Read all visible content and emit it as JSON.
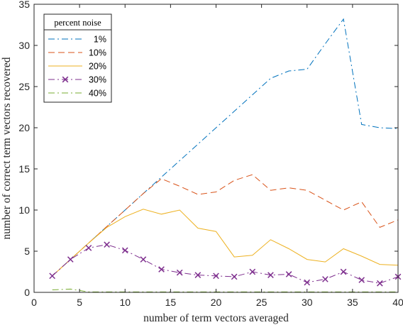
{
  "chart_data": {
    "type": "line",
    "xlabel": "number of term vectors averaged",
    "ylabel": "number of correct term vectors recovered",
    "xlim": [
      0,
      40
    ],
    "ylim": [
      0,
      35
    ],
    "xticks": [
      "0",
      "5",
      "10",
      "15",
      "20",
      "25",
      "30",
      "35",
      "40"
    ],
    "yticks": [
      "0",
      "5",
      "10",
      "15",
      "20",
      "25",
      "30",
      "35"
    ],
    "grid": false,
    "legend": {
      "title": "percent noise",
      "placement": "top-left"
    },
    "x": [
      2,
      4,
      6,
      8,
      10,
      12,
      14,
      16,
      18,
      20,
      22,
      24,
      26,
      28,
      30,
      32,
      34,
      36,
      38,
      40
    ],
    "series": [
      {
        "name": "1%",
        "color": "#0072BD",
        "dash": "dashdot",
        "marker": "none",
        "values": [
          2,
          4,
          6,
          8,
          10,
          12,
          14,
          16,
          18,
          20,
          22,
          24,
          26,
          26.9,
          27.1,
          30.2,
          33.2,
          20.4,
          20.0,
          19.9
        ]
      },
      {
        "name": "10%",
        "color": "#D95319",
        "dash": "dashed",
        "marker": "none",
        "values": [
          2,
          4,
          6,
          8,
          10,
          12,
          13.8,
          12.9,
          11.9,
          12.2,
          13.6,
          14.3,
          12.4,
          12.7,
          12.4,
          11.2,
          10.0,
          11.0,
          7.9,
          8.8
        ]
      },
      {
        "name": "20%",
        "color": "#EDB120",
        "dash": "solid",
        "marker": "none",
        "values": [
          2,
          4,
          6,
          7.9,
          9.2,
          10.1,
          9.5,
          10.0,
          7.8,
          7.4,
          4.3,
          4.5,
          6.4,
          5.3,
          4.0,
          3.7,
          5.3,
          4.4,
          3.4,
          3.3
        ]
      },
      {
        "name": "30%",
        "color": "#7E2F8E",
        "dash": "dashdot",
        "marker": "x",
        "values": [
          2,
          4,
          5.4,
          5.8,
          5.1,
          4.0,
          2.8,
          2.4,
          2.1,
          2.0,
          1.9,
          2.5,
          2.1,
          2.2,
          1.2,
          1.6,
          2.5,
          1.5,
          1.1,
          1.9
        ]
      },
      {
        "name": "40%",
        "color": "#77AC30",
        "dash": "dashdot",
        "marker": "none",
        "values": [
          0.3,
          0.4,
          0.05,
          0.05,
          0.05,
          0.05,
          0.05,
          0.05,
          0.05,
          0.05,
          0.05,
          0.05,
          0.05,
          0.05,
          0.05,
          0.05,
          0.05,
          0.05,
          0.05,
          0.05
        ]
      }
    ]
  }
}
